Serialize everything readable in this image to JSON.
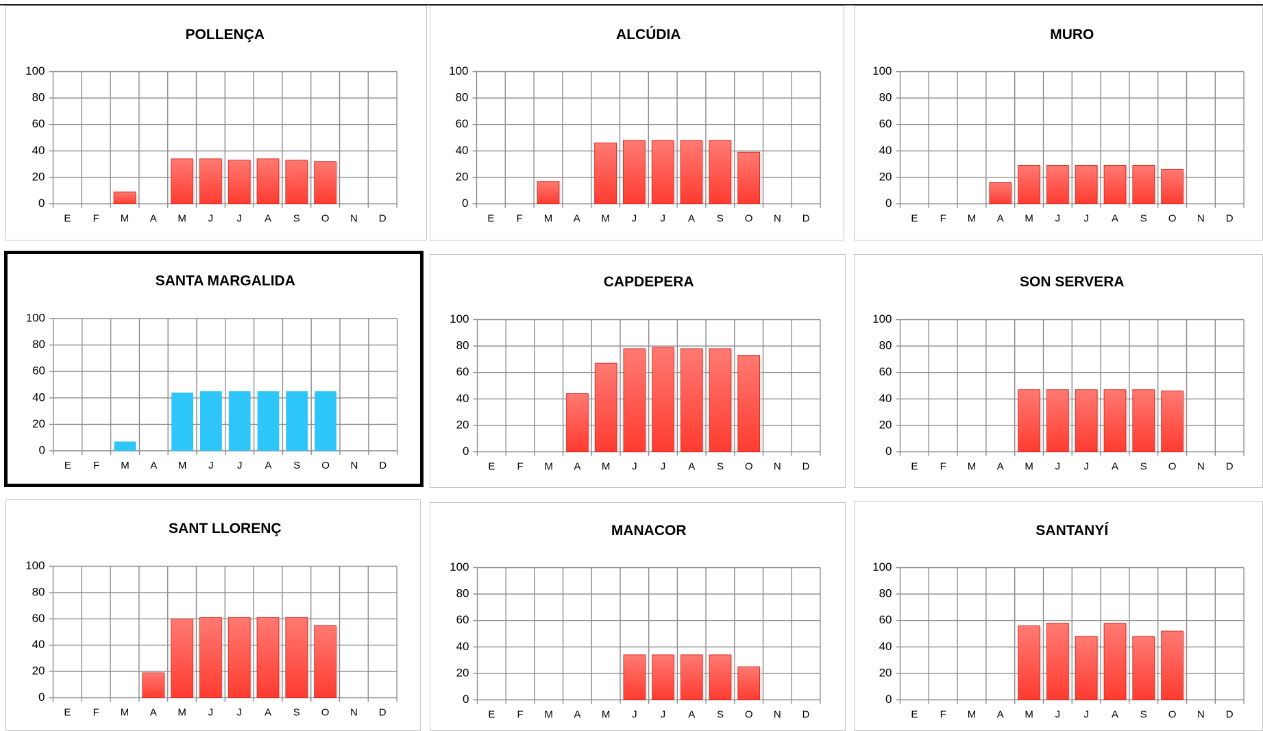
{
  "style": {
    "bar_color_default": "#ff3b30",
    "bar_color_highlight": "#2ec6f8",
    "grid_color": "#8c8c8c"
  },
  "chart_data": [
    {
      "type": "bar",
      "title": "POLLENÇA",
      "categories": [
        "E",
        "F",
        "M",
        "A",
        "M",
        "J",
        "J",
        "A",
        "S",
        "O",
        "N",
        "D"
      ],
      "values": [
        0,
        0,
        9,
        0,
        34,
        34,
        33,
        34,
        33,
        32,
        0,
        0
      ],
      "ylim": [
        0,
        100
      ],
      "yticks": [
        "0",
        "20",
        "40",
        "60",
        "80",
        "100"
      ],
      "grid": true,
      "color": "#ff3b30"
    },
    {
      "type": "bar",
      "title": "ALCÚDIA",
      "categories": [
        "E",
        "F",
        "M",
        "A",
        "M",
        "J",
        "J",
        "A",
        "S",
        "O",
        "N",
        "D"
      ],
      "values": [
        0,
        0,
        17,
        0,
        46,
        48,
        48,
        48,
        48,
        39,
        0,
        0
      ],
      "ylim": [
        0,
        100
      ],
      "yticks": [
        "0",
        "20",
        "40",
        "60",
        "80",
        "100"
      ],
      "grid": true,
      "color": "#ff3b30"
    },
    {
      "type": "bar",
      "title": "MURO",
      "categories": [
        "E",
        "F",
        "M",
        "A",
        "M",
        "J",
        "J",
        "A",
        "S",
        "O",
        "N",
        "D"
      ],
      "values": [
        0,
        0,
        0,
        16,
        29,
        29,
        29,
        29,
        29,
        26,
        0,
        0
      ],
      "ylim": [
        0,
        100
      ],
      "yticks": [
        "0",
        "20",
        "40",
        "60",
        "80",
        "100"
      ],
      "grid": true,
      "color": "#ff3b30"
    },
    {
      "type": "bar",
      "title": "SANTA MARGALIDA",
      "categories": [
        "E",
        "F",
        "M",
        "A",
        "M",
        "J",
        "J",
        "A",
        "S",
        "O",
        "N",
        "D"
      ],
      "values": [
        0,
        0,
        7,
        0,
        44,
        45,
        45,
        45,
        45,
        45,
        0,
        0
      ],
      "ylim": [
        0,
        100
      ],
      "yticks": [
        "0",
        "20",
        "40",
        "60",
        "80",
        "100"
      ],
      "grid": true,
      "color": "#2ec6f8",
      "highlighted": true
    },
    {
      "type": "bar",
      "title": "CAPDEPERA",
      "categories": [
        "E",
        "F",
        "M",
        "A",
        "M",
        "J",
        "J",
        "A",
        "S",
        "O",
        "N",
        "D"
      ],
      "values": [
        0,
        0,
        0,
        44,
        67,
        78,
        79,
        78,
        78,
        73,
        0,
        0
      ],
      "ylim": [
        0,
        100
      ],
      "yticks": [
        "0",
        "20",
        "40",
        "60",
        "80",
        "100"
      ],
      "grid": true,
      "color": "#ff3b30"
    },
    {
      "type": "bar",
      "title": "SON SERVERA",
      "categories": [
        "E",
        "F",
        "M",
        "A",
        "M",
        "J",
        "J",
        "A",
        "S",
        "O",
        "N",
        "D"
      ],
      "values": [
        0,
        0,
        0,
        0,
        47,
        47,
        47,
        47,
        47,
        46,
        0,
        0
      ],
      "ylim": [
        0,
        100
      ],
      "yticks": [
        "0",
        "20",
        "40",
        "60",
        "80",
        "100"
      ],
      "grid": true,
      "color": "#ff3b30"
    },
    {
      "type": "bar",
      "title": "SANT LLORENÇ",
      "categories": [
        "E",
        "F",
        "M",
        "A",
        "M",
        "J",
        "J",
        "A",
        "S",
        "O",
        "N",
        "D"
      ],
      "values": [
        0,
        0,
        0,
        19,
        60,
        61,
        61,
        61,
        61,
        55,
        0,
        0
      ],
      "ylim": [
        0,
        100
      ],
      "yticks": [
        "0",
        "20",
        "40",
        "60",
        "80",
        "100"
      ],
      "grid": true,
      "color": "#ff3b30"
    },
    {
      "type": "bar",
      "title": "MANACOR",
      "categories": [
        "E",
        "F",
        "M",
        "A",
        "M",
        "J",
        "J",
        "A",
        "S",
        "O",
        "N",
        "D"
      ],
      "values": [
        0,
        0,
        0,
        0,
        0,
        34,
        34,
        34,
        34,
        25,
        0,
        0
      ],
      "ylim": [
        0,
        100
      ],
      "yticks": [
        "0",
        "20",
        "40",
        "60",
        "80",
        "100"
      ],
      "grid": true,
      "color": "#ff3b30"
    },
    {
      "type": "bar",
      "title": "SANTANYÍ",
      "categories": [
        "E",
        "F",
        "M",
        "A",
        "M",
        "J",
        "J",
        "A",
        "S",
        "O",
        "N",
        "D"
      ],
      "values": [
        0,
        0,
        0,
        0,
        56,
        58,
        48,
        58,
        48,
        52,
        0,
        0
      ],
      "ylim": [
        0,
        100
      ],
      "yticks": [
        "0",
        "20",
        "40",
        "60",
        "80",
        "100"
      ],
      "grid": true,
      "color": "#ff3b30"
    }
  ]
}
